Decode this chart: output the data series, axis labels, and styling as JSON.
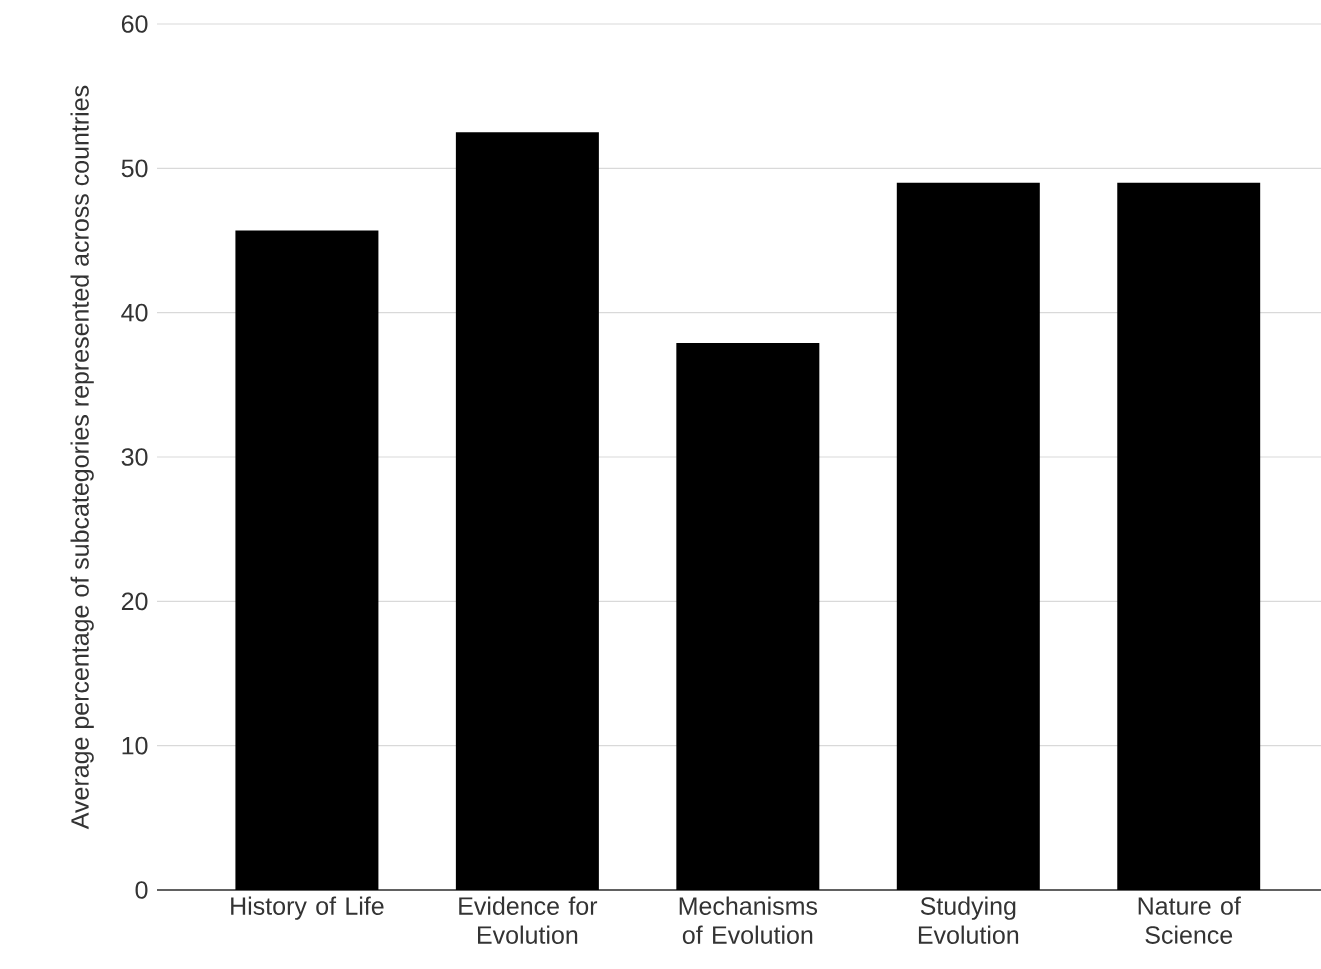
{
  "chart_data": {
    "type": "bar",
    "ylabel": "Average percentage of subcategories represented across countries",
    "categories": [
      "History of Life",
      "Evidence for Evolution",
      "Mechanisms of Evolution",
      "Studying Evolution",
      "Nature of Science"
    ],
    "values": [
      45.7,
      52.5,
      37.9,
      49.0,
      49.0
    ],
    "color": "#000000",
    "ylim": [
      0,
      60
    ],
    "yticks": [
      0,
      10,
      20,
      30,
      40,
      50,
      60
    ],
    "grid": "y"
  }
}
